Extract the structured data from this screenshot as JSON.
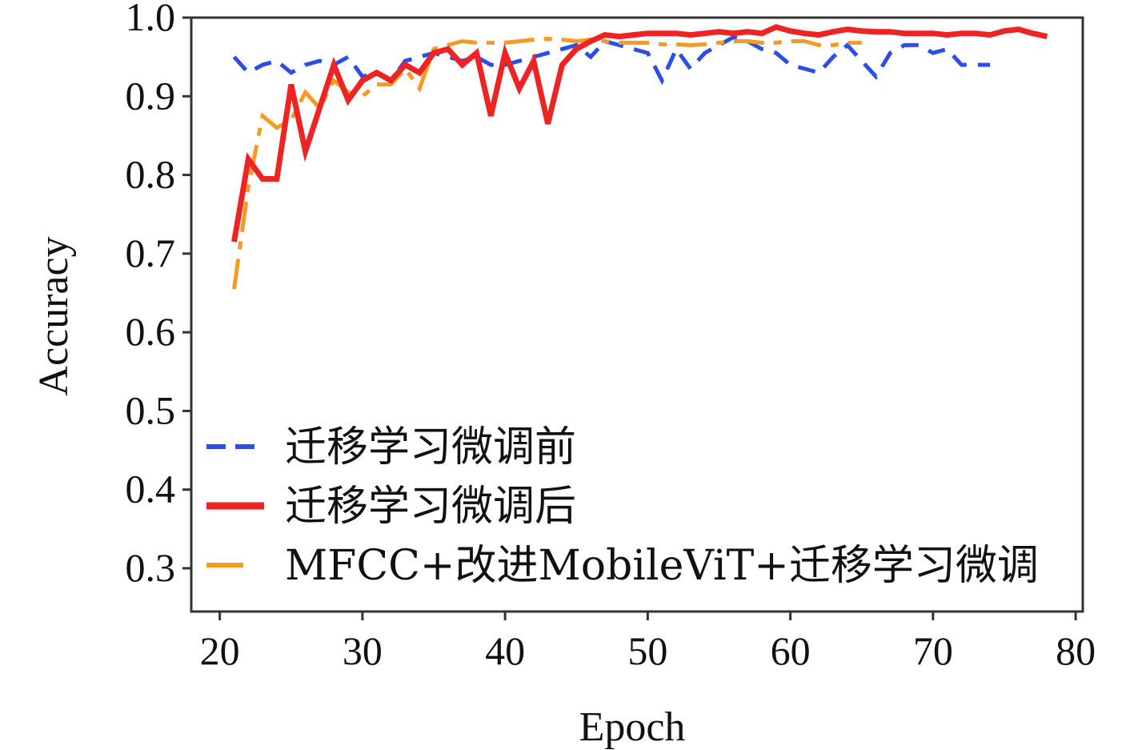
{
  "chart_data": {
    "type": "line",
    "xlabel": "Epoch",
    "ylabel": "Accuracy",
    "xlim": [
      18,
      80.5
    ],
    "ylim": [
      0.245,
      1.0
    ],
    "xticks": [
      20,
      30,
      40,
      50,
      60,
      70,
      80
    ],
    "yticks": [
      0.3,
      0.4,
      0.5,
      0.6,
      0.7,
      0.8,
      0.9,
      1.0
    ],
    "xtick_labels": [
      "20",
      "30",
      "40",
      "50",
      "60",
      "70",
      "80"
    ],
    "ytick_labels": [
      "0.3",
      "0.4",
      "0.5",
      "0.6",
      "0.7",
      "0.8",
      "0.9",
      "1.0"
    ],
    "grid": false,
    "legend_position": "bottom-left",
    "series": [
      {
        "name": "迁移学习微调前",
        "color": "#2b4de8",
        "style": "dashed",
        "x": [
          21,
          22,
          23,
          24,
          25,
          26,
          27,
          28,
          29,
          30,
          31,
          32,
          33,
          34,
          35,
          36,
          37,
          38,
          39,
          40,
          41,
          42,
          43,
          44,
          45,
          46,
          47,
          48,
          49,
          50,
          51,
          52,
          53,
          54,
          55,
          56,
          57,
          58,
          59,
          60,
          61,
          62,
          63,
          64,
          65,
          66,
          67,
          68,
          69,
          70,
          71,
          72,
          73,
          74
        ],
        "y": [
          0.95,
          0.93,
          0.94,
          0.945,
          0.93,
          0.94,
          0.945,
          0.94,
          0.95,
          0.925,
          0.93,
          0.92,
          0.945,
          0.95,
          0.955,
          0.95,
          0.945,
          0.95,
          0.94,
          0.94,
          0.945,
          0.95,
          0.955,
          0.96,
          0.965,
          0.95,
          0.97,
          0.965,
          0.96,
          0.955,
          0.92,
          0.96,
          0.935,
          0.955,
          0.965,
          0.975,
          0.97,
          0.96,
          0.955,
          0.94,
          0.935,
          0.93,
          0.95,
          0.965,
          0.945,
          0.925,
          0.955,
          0.965,
          0.965,
          0.955,
          0.96,
          0.94,
          0.94,
          0.94
        ]
      },
      {
        "name": "迁移学习微调后",
        "color": "#ee2424",
        "style": "solid",
        "x": [
          21,
          22,
          23,
          24,
          25,
          26,
          27,
          28,
          29,
          30,
          31,
          32,
          33,
          34,
          35,
          36,
          37,
          38,
          39,
          40,
          41,
          42,
          43,
          44,
          45,
          46,
          47,
          48,
          49,
          50,
          51,
          52,
          53,
          54,
          55,
          56,
          57,
          58,
          59,
          60,
          61,
          62,
          63,
          64,
          65,
          66,
          67,
          68,
          69,
          70,
          71,
          72,
          73,
          74,
          75,
          76,
          77,
          78
        ],
        "y": [
          0.715,
          0.82,
          0.795,
          0.795,
          0.915,
          0.83,
          0.885,
          0.94,
          0.895,
          0.92,
          0.93,
          0.92,
          0.94,
          0.93,
          0.955,
          0.96,
          0.94,
          0.955,
          0.875,
          0.955,
          0.91,
          0.945,
          0.865,
          0.94,
          0.96,
          0.97,
          0.978,
          0.976,
          0.978,
          0.98,
          0.98,
          0.98,
          0.978,
          0.98,
          0.982,
          0.98,
          0.982,
          0.98,
          0.988,
          0.983,
          0.98,
          0.978,
          0.982,
          0.985,
          0.983,
          0.982,
          0.982,
          0.98,
          0.98,
          0.98,
          0.978,
          0.98,
          0.98,
          0.978,
          0.983,
          0.985,
          0.98,
          0.976
        ]
      },
      {
        "name": "MFCC+改进MobileViT+迁移学习微调",
        "color": "#f59a23",
        "style": "dashdot",
        "x": [
          21,
          22,
          23,
          24,
          25,
          26,
          27,
          28,
          29,
          30,
          31,
          32,
          33,
          34,
          35,
          36,
          37,
          38,
          39,
          40,
          41,
          42,
          43,
          44,
          45,
          46,
          47,
          48,
          49,
          50,
          51,
          52,
          53,
          54,
          55,
          56,
          57,
          58,
          59,
          60,
          61,
          62,
          63,
          64,
          65
        ],
        "y": [
          0.655,
          0.785,
          0.875,
          0.86,
          0.87,
          0.905,
          0.885,
          0.92,
          0.905,
          0.9,
          0.915,
          0.915,
          0.935,
          0.91,
          0.96,
          0.965,
          0.97,
          0.968,
          0.968,
          0.968,
          0.97,
          0.972,
          0.973,
          0.972,
          0.97,
          0.972,
          0.97,
          0.968,
          0.968,
          0.968,
          0.966,
          0.966,
          0.965,
          0.966,
          0.968,
          0.97,
          0.97,
          0.968,
          0.968,
          0.97,
          0.97,
          0.965,
          0.965,
          0.968,
          0.968
        ]
      }
    ]
  }
}
